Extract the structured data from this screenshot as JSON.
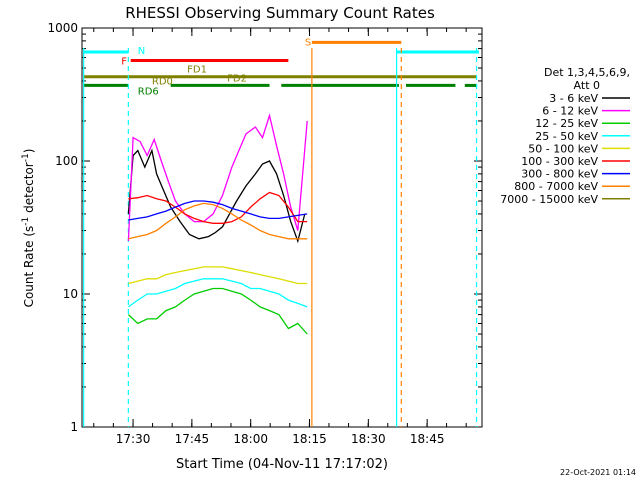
{
  "chart_data": {
    "type": "line",
    "title": "RHESSI Observing Summary Count Rates",
    "xlabel": "Start Time (04-Nov-11 17:17:02)",
    "ylabel_main": "Count Rate (s",
    "ylabel_sup1": "-1",
    "ylabel_mid": " detector",
    "ylabel_sup2": "-1",
    "ylabel_end": ")",
    "yscale": "log",
    "ylim": [
      1,
      1000
    ],
    "xlim_minutes": [
      17.283,
      18.983
    ],
    "x_ticks": [
      {
        "label": "17:30",
        "t": 17.5
      },
      {
        "label": "17:45",
        "t": 17.75
      },
      {
        "label": "18:00",
        "t": 18.0
      },
      {
        "label": "18:15",
        "t": 18.25
      },
      {
        "label": "18:30",
        "t": 18.5
      },
      {
        "label": "18:45",
        "t": 18.75
      }
    ],
    "y_ticks": [
      {
        "label": "1",
        "v": 1
      },
      {
        "label": "10",
        "v": 10
      },
      {
        "label": "100",
        "v": 100
      },
      {
        "label": "1000",
        "v": 1000
      }
    ],
    "legend": {
      "header1": "Det 1,3,4,5,6,9,",
      "header2": "Att 0",
      "placement": "right"
    },
    "series": [
      {
        "name": "3 - 6 keV",
        "color": "#000000",
        "points": [
          [
            17.48,
            40
          ],
          [
            17.5,
            110
          ],
          [
            17.52,
            120
          ],
          [
            17.55,
            90
          ],
          [
            17.58,
            120
          ],
          [
            17.6,
            80
          ],
          [
            17.63,
            60
          ],
          [
            17.66,
            45
          ],
          [
            17.7,
            35
          ],
          [
            17.74,
            28
          ],
          [
            17.78,
            26
          ],
          [
            17.82,
            27
          ],
          [
            17.85,
            29
          ],
          [
            17.88,
            32
          ],
          [
            17.91,
            40
          ],
          [
            17.94,
            50
          ],
          [
            17.98,
            65
          ],
          [
            18.02,
            80
          ],
          [
            18.05,
            95
          ],
          [
            18.08,
            100
          ],
          [
            18.11,
            80
          ],
          [
            18.14,
            55
          ],
          [
            18.17,
            35
          ],
          [
            18.2,
            25
          ],
          [
            18.23,
            40
          ]
        ]
      },
      {
        "name": "6 - 12 keV",
        "color": "#ff00ff",
        "points": [
          [
            17.48,
            25
          ],
          [
            17.5,
            150
          ],
          [
            17.53,
            140
          ],
          [
            17.56,
            110
          ],
          [
            17.59,
            145
          ],
          [
            17.62,
            100
          ],
          [
            17.65,
            70
          ],
          [
            17.68,
            50
          ],
          [
            17.72,
            40
          ],
          [
            17.76,
            35
          ],
          [
            17.8,
            35
          ],
          [
            17.84,
            40
          ],
          [
            17.88,
            55
          ],
          [
            17.92,
            90
          ],
          [
            17.95,
            120
          ],
          [
            17.98,
            160
          ],
          [
            18.02,
            180
          ],
          [
            18.05,
            150
          ],
          [
            18.08,
            220
          ],
          [
            18.11,
            130
          ],
          [
            18.14,
            80
          ],
          [
            18.17,
            45
          ],
          [
            18.2,
            30
          ],
          [
            18.24,
            200
          ]
        ]
      },
      {
        "name": "12 - 25 keV",
        "color": "#00cc00",
        "points": [
          [
            17.48,
            7
          ],
          [
            17.52,
            6
          ],
          [
            17.56,
            6.5
          ],
          [
            17.6,
            6.5
          ],
          [
            17.64,
            7.5
          ],
          [
            17.68,
            8
          ],
          [
            17.72,
            9
          ],
          [
            17.76,
            10
          ],
          [
            17.8,
            10.5
          ],
          [
            17.84,
            11
          ],
          [
            17.88,
            11
          ],
          [
            17.92,
            10.5
          ],
          [
            17.96,
            10
          ],
          [
            18.0,
            9
          ],
          [
            18.04,
            8
          ],
          [
            18.08,
            7.5
          ],
          [
            18.12,
            7
          ],
          [
            18.16,
            5.5
          ],
          [
            18.2,
            6
          ],
          [
            18.24,
            5
          ]
        ]
      },
      {
        "name": "25 - 50 keV",
        "color": "#00ffff",
        "points": [
          [
            17.48,
            8
          ],
          [
            17.52,
            9
          ],
          [
            17.56,
            10
          ],
          [
            17.6,
            10
          ],
          [
            17.64,
            10.5
          ],
          [
            17.68,
            11
          ],
          [
            17.72,
            12
          ],
          [
            17.76,
            12.5
          ],
          [
            17.8,
            13
          ],
          [
            17.84,
            13
          ],
          [
            17.88,
            13
          ],
          [
            17.92,
            12.5
          ],
          [
            17.96,
            12
          ],
          [
            18.0,
            11
          ],
          [
            18.04,
            11
          ],
          [
            18.08,
            10.5
          ],
          [
            18.12,
            10
          ],
          [
            18.16,
            9
          ],
          [
            18.2,
            8.5
          ],
          [
            18.24,
            8
          ]
        ]
      },
      {
        "name": "50 - 100 keV",
        "color": "#dddd00",
        "points": [
          [
            17.48,
            12
          ],
          [
            17.52,
            12.5
          ],
          [
            17.56,
            13
          ],
          [
            17.6,
            13
          ],
          [
            17.64,
            14
          ],
          [
            17.68,
            14.5
          ],
          [
            17.72,
            15
          ],
          [
            17.76,
            15.5
          ],
          [
            17.8,
            16
          ],
          [
            17.84,
            16
          ],
          [
            17.88,
            16
          ],
          [
            17.92,
            15.5
          ],
          [
            17.96,
            15
          ],
          [
            18.0,
            14.5
          ],
          [
            18.04,
            14
          ],
          [
            18.08,
            13.5
          ],
          [
            18.12,
            13
          ],
          [
            18.16,
            12.5
          ],
          [
            18.2,
            12
          ],
          [
            18.24,
            12
          ]
        ]
      },
      {
        "name": "100 - 300 keV",
        "color": "#ff0000",
        "points": [
          [
            17.48,
            52
          ],
          [
            17.52,
            53
          ],
          [
            17.56,
            55
          ],
          [
            17.6,
            52
          ],
          [
            17.64,
            50
          ],
          [
            17.68,
            45
          ],
          [
            17.72,
            40
          ],
          [
            17.76,
            37
          ],
          [
            17.8,
            35
          ],
          [
            17.84,
            34
          ],
          [
            17.88,
            34
          ],
          [
            17.92,
            35
          ],
          [
            17.96,
            38
          ],
          [
            18.0,
            45
          ],
          [
            18.04,
            52
          ],
          [
            18.08,
            58
          ],
          [
            18.12,
            55
          ],
          [
            18.16,
            45
          ],
          [
            18.2,
            35
          ],
          [
            18.24,
            35
          ]
        ]
      },
      {
        "name": "300 - 800 keV",
        "color": "#0000ff",
        "points": [
          [
            17.48,
            36
          ],
          [
            17.52,
            37
          ],
          [
            17.56,
            38
          ],
          [
            17.6,
            40
          ],
          [
            17.64,
            42
          ],
          [
            17.68,
            45
          ],
          [
            17.72,
            48
          ],
          [
            17.76,
            50
          ],
          [
            17.8,
            50
          ],
          [
            17.84,
            49
          ],
          [
            17.88,
            47
          ],
          [
            17.92,
            44
          ],
          [
            17.96,
            42
          ],
          [
            18.0,
            40
          ],
          [
            18.04,
            38
          ],
          [
            18.08,
            37
          ],
          [
            18.12,
            37
          ],
          [
            18.16,
            38
          ],
          [
            18.2,
            39
          ],
          [
            18.24,
            40
          ]
        ]
      },
      {
        "name": "800 - 7000 keV",
        "color": "#ff8000",
        "points": [
          [
            17.48,
            26
          ],
          [
            17.52,
            27
          ],
          [
            17.56,
            28
          ],
          [
            17.6,
            30
          ],
          [
            17.64,
            34
          ],
          [
            17.68,
            38
          ],
          [
            17.72,
            43
          ],
          [
            17.76,
            46
          ],
          [
            17.8,
            48
          ],
          [
            17.84,
            47
          ],
          [
            17.88,
            44
          ],
          [
            17.92,
            40
          ],
          [
            17.96,
            36
          ],
          [
            18.0,
            33
          ],
          [
            18.04,
            30
          ],
          [
            18.08,
            28
          ],
          [
            18.12,
            27
          ],
          [
            18.16,
            26
          ],
          [
            18.2,
            26
          ],
          [
            18.24,
            26
          ]
        ]
      },
      {
        "name": "7000 - 15000 keV",
        "color": "#808000",
        "points": []
      }
    ],
    "bands": [
      {
        "label": "N",
        "color": "#00ffff",
        "segments": [
          [
            17.29,
            17.48
          ],
          [
            18.62,
            18.97
          ]
        ],
        "level": 660
      },
      {
        "label": "S",
        "color": "#ff8000",
        "segments": [
          [
            18.26,
            18.64
          ]
        ],
        "level": 780
      },
      {
        "label": "F",
        "color": "#ff0000",
        "segments": [
          [
            17.49,
            18.16
          ]
        ],
        "level": 570
      },
      {
        "label": "FD1",
        "color": "#808000",
        "segments": [],
        "level": 480
      },
      {
        "label": "FD2",
        "color": "#808000",
        "segments": [],
        "level": 440
      },
      {
        "label": "RD0",
        "color": "#808000",
        "segments": [
          [
            17.29,
            18.96
          ]
        ],
        "level": 430
      },
      {
        "label": "RD6",
        "color": "#008000",
        "segments": [
          [
            17.29,
            17.48
          ],
          [
            17.66,
            18.08
          ],
          [
            18.13,
            18.63
          ],
          [
            18.66,
            18.87
          ],
          [
            18.91,
            18.96
          ]
        ],
        "level": 370
      }
    ],
    "timestamp": "22-Oct-2021 01:14"
  }
}
